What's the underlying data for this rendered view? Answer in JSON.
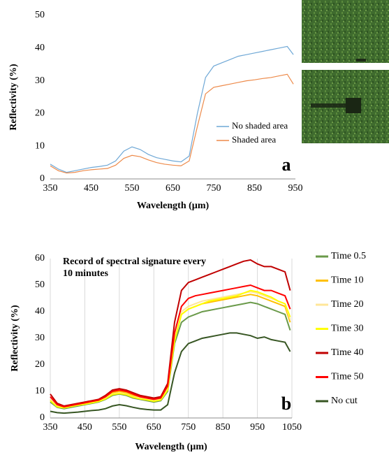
{
  "chart_data": [
    {
      "type": "line",
      "panel_label": "a",
      "ylabel": "Reflectivity (%)",
      "xlabel": "Wavelength (µm)",
      "x": [
        350,
        370,
        390,
        410,
        430,
        450,
        470,
        490,
        510,
        530,
        550,
        570,
        590,
        610,
        630,
        650,
        670,
        690,
        710,
        730,
        750,
        770,
        790,
        810,
        830,
        850,
        870,
        890,
        910,
        930,
        945
      ],
      "xlim": [
        350,
        950
      ],
      "xticks": [
        350,
        450,
        550,
        650,
        750,
        850,
        950
      ],
      "ylim": [
        0,
        50
      ],
      "yticks": [
        0,
        10,
        20,
        30,
        40,
        50
      ],
      "grid": false,
      "legend": "right",
      "series": [
        {
          "name": "No shaded area",
          "color": "#6fa8d6",
          "values": [
            4.5,
            3,
            2,
            2.5,
            3,
            3.5,
            3.8,
            4.2,
            5.5,
            8.5,
            9.8,
            9,
            7.5,
            6.5,
            6,
            5.5,
            5.2,
            7,
            20,
            31,
            34.5,
            35.5,
            36.5,
            37.5,
            38,
            38.5,
            39,
            39.5,
            40,
            40.5,
            38
          ]
        },
        {
          "name": "Shaded area",
          "color": "#ed8a4a",
          "values": [
            4,
            2.5,
            1.8,
            2,
            2.5,
            2.8,
            3,
            3.2,
            4.2,
            6.3,
            7.2,
            6.8,
            5.8,
            5,
            4.5,
            4.2,
            4,
            5.5,
            16,
            26,
            28,
            28.5,
            29,
            29.5,
            30,
            30.3,
            30.7,
            31,
            31.5,
            32,
            29
          ]
        }
      ]
    },
    {
      "type": "line",
      "title": "Record of spectral signature every 10 minutes",
      "panel_label": "b",
      "ylabel": "Reflectivity (%)",
      "xlabel": "Wavelength (µm)",
      "x": [
        350,
        370,
        390,
        410,
        430,
        450,
        470,
        490,
        510,
        530,
        550,
        570,
        590,
        610,
        630,
        650,
        670,
        690,
        710,
        730,
        750,
        770,
        790,
        810,
        830,
        850,
        870,
        890,
        910,
        930,
        950,
        970,
        990,
        1010,
        1030,
        1045
      ],
      "xlim": [
        350,
        1050
      ],
      "xticks": [
        350,
        450,
        550,
        650,
        750,
        850,
        950,
        1050
      ],
      "ylim": [
        0,
        60
      ],
      "yticks": [
        0,
        10,
        20,
        30,
        40,
        50,
        60
      ],
      "grid": true,
      "legend": "outside right",
      "series": [
        {
          "name": "Time 0.5",
          "color": "#6a9a4a",
          "values": [
            6,
            4,
            3.5,
            4,
            4.5,
            5,
            5.5,
            6,
            7,
            8.5,
            9,
            8.5,
            7.5,
            7,
            6.5,
            6,
            6.5,
            10,
            28,
            36,
            38,
            39,
            40,
            40.5,
            41,
            41.5,
            42,
            42.5,
            43,
            43.5,
            43,
            42,
            41,
            40,
            39,
            33
          ]
        },
        {
          "name": "Time 10",
          "color": "#ffc000",
          "values": [
            7,
            4.5,
            4,
            4.5,
            5,
            5.5,
            6,
            6.5,
            7.5,
            9.5,
            10,
            9.5,
            8.5,
            7.5,
            7,
            6.5,
            7,
            11,
            30,
            39,
            41,
            42,
            43,
            43.5,
            44,
            44.5,
            45,
            45.5,
            46,
            46.5,
            46,
            45,
            44,
            43,
            42,
            36
          ]
        },
        {
          "name": "Time 20",
          "color": "#ffe699",
          "values": [
            7,
            4.5,
            4,
            4.5,
            5,
            5.5,
            6,
            6.5,
            7.5,
            9,
            9.5,
            9,
            8,
            7.5,
            7,
            6.5,
            7,
            11,
            30,
            40,
            42,
            43,
            44,
            44.5,
            45,
            45.5,
            46,
            46.5,
            47,
            47.5,
            47,
            46,
            45,
            44,
            43,
            37
          ]
        },
        {
          "name": "Time 30",
          "color": "#ffff00",
          "values": [
            6.5,
            4.2,
            3.8,
            4.3,
            4.8,
            5.2,
            5.7,
            6.2,
            7.2,
            8.8,
            9.2,
            8.8,
            7.8,
            7.2,
            6.8,
            6.3,
            6.8,
            10.5,
            29,
            39,
            41,
            42,
            43,
            44,
            44.5,
            45,
            45.5,
            46,
            47,
            48,
            47.5,
            46.5,
            45.5,
            44,
            43,
            38
          ]
        },
        {
          "name": "Time 40",
          "color": "#c00000",
          "values": [
            9,
            5.5,
            4.5,
            5,
            5.5,
            6,
            6.5,
            7,
            8.5,
            10.5,
            11,
            10.5,
            9.5,
            8.5,
            8,
            7.5,
            8,
            13,
            36,
            48,
            51,
            52,
            53,
            54,
            55,
            56,
            57,
            58,
            59,
            59.5,
            58,
            57,
            57,
            56,
            55,
            48
          ]
        },
        {
          "name": "Time 50",
          "color": "#ff0000",
          "values": [
            8,
            5,
            4.2,
            4.7,
            5.2,
            5.7,
            6.2,
            6.7,
            8,
            10,
            10.5,
            10,
            9,
            8,
            7.5,
            7,
            7.5,
            12,
            32,
            42,
            45,
            46,
            46.5,
            47,
            47.5,
            48,
            48.5,
            49,
            49.5,
            50,
            49,
            48,
            48,
            47,
            46,
            41
          ]
        },
        {
          "name": "No cut",
          "color": "#375623",
          "values": [
            2.5,
            2,
            1.8,
            2,
            2.2,
            2.5,
            2.8,
            3,
            3.5,
            4.5,
            5,
            4.6,
            4,
            3.5,
            3.2,
            3,
            3,
            5,
            17,
            25,
            28,
            29,
            30,
            30.5,
            31,
            31.5,
            32,
            32,
            31.5,
            31,
            30,
            30.5,
            29.5,
            29,
            28.5,
            25
          ]
        }
      ]
    }
  ]
}
